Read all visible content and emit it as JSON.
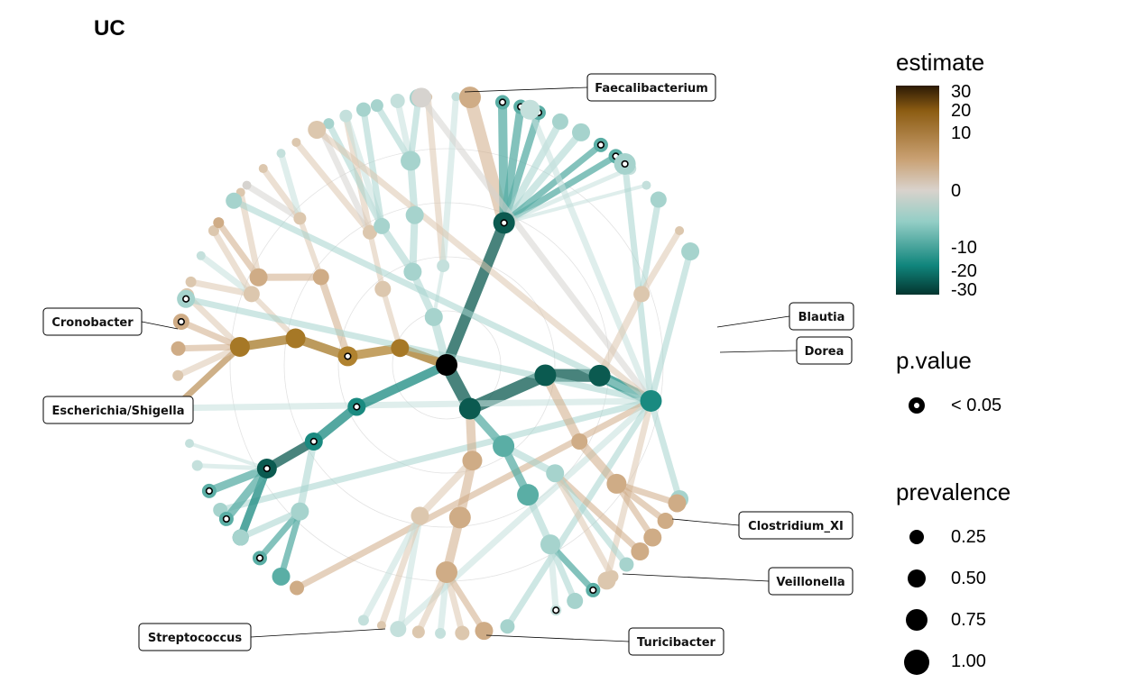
{
  "title": "UC",
  "labels": {
    "faecalibacterium": "Faecalibacterium",
    "cronobacter": "Cronobacter",
    "escherichia": "Escherichia/Shigella",
    "blautia": "Blautia",
    "dorea": "Dorea",
    "clostridium": "Clostridium_XI",
    "veillonella": "Veillonella",
    "streptococcus": "Streptococcus",
    "turicibacter": "Turicibacter"
  },
  "legend": {
    "estimate": {
      "title": "estimate",
      "ticks": [
        "30",
        "20",
        "10",
        "0",
        "-10",
        "-20",
        "-30"
      ],
      "colors": [
        "#2b1a05",
        "#8c5c12",
        "#c9a072",
        "#d9d2cc",
        "#94cec6",
        "#10857c",
        "#03352f"
      ]
    },
    "pvalue": {
      "title": "p.value",
      "item": "< 0.05"
    },
    "prevalence": {
      "title": "prevalence",
      "items": [
        "0.25",
        "0.50",
        "0.75",
        "1.00"
      ]
    }
  }
}
